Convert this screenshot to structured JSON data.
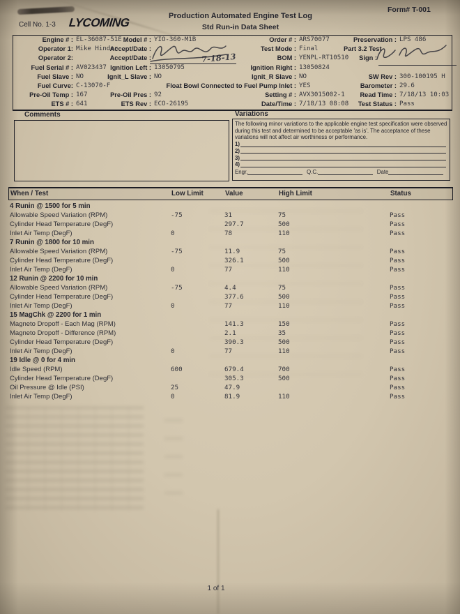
{
  "header": {
    "cell_no": "Cell No. 1-3",
    "logo": "LYCOMING",
    "title": "Production Automated Engine Test Log",
    "subtitle": "Std Run-in Data Sheet",
    "form_no": "Form# T-001"
  },
  "info": {
    "engine": {
      "label": "Engine # :",
      "value": "EL-36087-51E"
    },
    "operator1": {
      "label": "Operator 1:",
      "value": "Mike Hinder"
    },
    "operator2": {
      "label": "Operator 2:",
      "value": ""
    },
    "fuel_serial": {
      "label": "Fuel Serial # :",
      "value": "AV023437"
    },
    "fuel_slave": {
      "label": "Fuel Slave :",
      "value": "NO"
    },
    "fuel_curve": {
      "label": "Fuel Curve:",
      "value": "C-13070-F"
    },
    "pre_oil_temp": {
      "label": "Pre-Oil Temp :",
      "value": "167"
    },
    "ets_num": {
      "label": "ETS # :",
      "value": "641"
    },
    "model": {
      "label": "Model # :",
      "value": "YIO-360-M1B"
    },
    "accept1": {
      "label": "Accept/Date :",
      "value": ""
    },
    "accept2": {
      "label": "Accept/Date :",
      "value": "7-18-13"
    },
    "ignition_left": {
      "label": "Ignition Left :",
      "value": "13050795"
    },
    "ignit_l_slave": {
      "label": "Ignit_L Slave :",
      "value": "NO"
    },
    "float_bowl": {
      "label": "Float Bowl Connected to Fuel Pump Inlet :",
      "value": "YES"
    },
    "pre_oil_pres": {
      "label": "Pre-Oil Pres :",
      "value": "92"
    },
    "ets_rev": {
      "label": "ETS Rev :",
      "value": "ECO-26195"
    },
    "order": {
      "label": "Order # :",
      "value": "ARS70077"
    },
    "test_mode": {
      "label": "Test Mode :",
      "value": "Final"
    },
    "bom": {
      "label": "BOM :",
      "value": "YENPL-RT10510"
    },
    "ignition_right": {
      "label": "Ignition Right :",
      "value": "13050824"
    },
    "ignit_r_slave": {
      "label": "Ignit_R Slave :",
      "value": "NO"
    },
    "setting": {
      "label": "Setting # :",
      "value": "AVX3015002-1"
    },
    "datetime": {
      "label": "Date/Time :",
      "value": "7/18/13 08:08"
    },
    "preservation": {
      "label": "Preservation :",
      "value": "LPS 486"
    },
    "part_test": {
      "label": "Part 3.2 Test"
    },
    "sign": {
      "label": "Sign :"
    },
    "sw_rev": {
      "label": "SW Rev :",
      "value": "300-100195 H"
    },
    "barometer": {
      "label": "Barometer :",
      "value": "29.6"
    },
    "read_time": {
      "label": "Read Time :",
      "value": "7/18/13 10:03"
    },
    "test_status": {
      "label": "Test Status :",
      "value": "Pass"
    }
  },
  "comments": {
    "title": "Comments"
  },
  "variations": {
    "title": "Variations",
    "paragraph": "The following minor variations to the applicable engine test specification were observed during this test and determined to be acceptable 'as is'.  The acceptance of these variations will not affect air worthiness or performance.",
    "numbers": [
      "1)",
      "2)",
      "3)",
      "4)"
    ],
    "engr_label": "Engr.",
    "qc_label": "Q.C.",
    "date_label": "Date"
  },
  "table": {
    "headers": [
      "When / Test",
      "Low Limit",
      "Value",
      "High Limit",
      "Status"
    ],
    "rows": [
      {
        "type": "section",
        "name": "4 Runin @ 1500 for 5 min"
      },
      {
        "type": "data",
        "name": "Allowable Speed Variation (RPM)",
        "low": "-75",
        "value": "31",
        "high": "75",
        "status": "Pass"
      },
      {
        "type": "data",
        "name": "Cylinder Head Temperature (DegF)",
        "low": "",
        "value": "297.7",
        "high": "500",
        "status": "Pass"
      },
      {
        "type": "data",
        "name": "Inlet Air Temp (DegF)",
        "low": "0",
        "value": "78",
        "high": "110",
        "status": "Pass"
      },
      {
        "type": "section",
        "name": "7 Runin @ 1800 for 10 min"
      },
      {
        "type": "data",
        "name": "Allowable Speed Variation (RPM)",
        "low": "-75",
        "value": "11.9",
        "high": "75",
        "status": "Pass"
      },
      {
        "type": "data",
        "name": "Cylinder Head Temperature (DegF)",
        "low": "",
        "value": "326.1",
        "high": "500",
        "status": "Pass"
      },
      {
        "type": "data",
        "name": "Inlet Air Temp (DegF)",
        "low": "0",
        "value": "77",
        "high": "110",
        "status": "Pass"
      },
      {
        "type": "section",
        "name": "12 Runin @ 2200 for 10 min"
      },
      {
        "type": "data",
        "name": "Allowable Speed Variation (RPM)",
        "low": "-75",
        "value": "4.4",
        "high": "75",
        "status": "Pass"
      },
      {
        "type": "data",
        "name": "Cylinder Head Temperature (DegF)",
        "low": "",
        "value": "377.6",
        "high": "500",
        "status": "Pass"
      },
      {
        "type": "data",
        "name": "Inlet Air Temp (DegF)",
        "low": "0",
        "value": "77",
        "high": "110",
        "status": "Pass"
      },
      {
        "type": "section",
        "name": "15 MagChk @ 2200 for 1 min"
      },
      {
        "type": "data",
        "name": "Magneto Dropoff - Each Mag (RPM)",
        "low": "",
        "value": "141.3",
        "high": "150",
        "status": "Pass"
      },
      {
        "type": "data",
        "name": "Magneto Dropoff - Difference (RPM)",
        "low": "",
        "value": "2.1",
        "high": "35",
        "status": "Pass"
      },
      {
        "type": "data",
        "name": "Cylinder Head Temperature (DegF)",
        "low": "",
        "value": "390.3",
        "high": "500",
        "status": "Pass"
      },
      {
        "type": "data",
        "name": "Inlet Air Temp (DegF)",
        "low": "0",
        "value": "77",
        "high": "110",
        "status": "Pass"
      },
      {
        "type": "section",
        "name": "19 Idle @ 0 for 4 min"
      },
      {
        "type": "data",
        "name": "Idle Speed (RPM)",
        "low": "600",
        "value": "679.4",
        "high": "700",
        "status": "Pass"
      },
      {
        "type": "data",
        "name": "Cylinder Head Temperature (DegF)",
        "low": "",
        "value": "305.3",
        "high": "500",
        "status": "Pass"
      },
      {
        "type": "data",
        "name": "Oil Pressure @ Idle (PSI)",
        "low": "25",
        "value": "47.9",
        "high": "",
        "status": "Pass"
      },
      {
        "type": "data",
        "name": "Inlet Air Temp (DegF)",
        "low": "0",
        "value": "81.9",
        "high": "110",
        "status": "Pass"
      }
    ]
  },
  "footer": {
    "page": "1 of 1"
  },
  "colors": {
    "paper": "#d2c6ae",
    "ink": "#26262e"
  }
}
